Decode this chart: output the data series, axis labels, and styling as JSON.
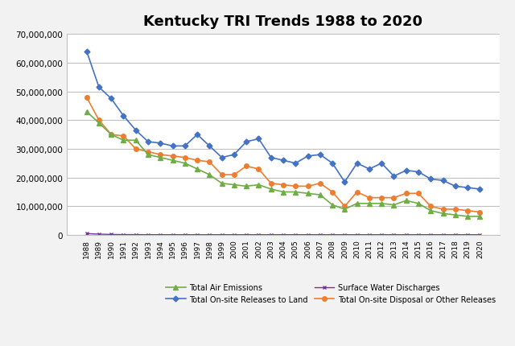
{
  "title": "Kentucky TRI Trends 1988 to 2020",
  "years": [
    1988,
    1989,
    1990,
    1991,
    1992,
    1993,
    1994,
    1995,
    1996,
    1997,
    1998,
    1999,
    2000,
    2001,
    2002,
    2003,
    2004,
    2005,
    2006,
    2007,
    2008,
    2009,
    2010,
    2011,
    2012,
    2013,
    2014,
    2015,
    2016,
    2017,
    2018,
    2019,
    2020
  ],
  "air_emissions": [
    43000000,
    39000000,
    35000000,
    33000000,
    33000000,
    28000000,
    27000000,
    26000000,
    25000000,
    23000000,
    21000000,
    18000000,
    17500000,
    17000000,
    17500000,
    16000000,
    15000000,
    15000000,
    14500000,
    14000000,
    10500000,
    9000000,
    11000000,
    11000000,
    11000000,
    10500000,
    12000000,
    11000000,
    8500000,
    7500000,
    7000000,
    6500000,
    6500000
  ],
  "surface_water": [
    500000,
    300000,
    200000,
    150000,
    150000,
    100000,
    100000,
    100000,
    100000,
    100000,
    100000,
    100000,
    100000,
    100000,
    100000,
    100000,
    100000,
    100000,
    100000,
    100000,
    100000,
    100000,
    100000,
    100000,
    100000,
    100000,
    100000,
    100000,
    100000,
    100000,
    100000,
    100000,
    100000
  ],
  "land_releases": [
    64000000,
    51500000,
    47500000,
    41500000,
    36500000,
    32500000,
    32000000,
    31000000,
    31000000,
    35000000,
    31000000,
    27000000,
    28000000,
    32500000,
    33500000,
    27000000,
    26000000,
    25000000,
    27500000,
    28000000,
    25000000,
    18500000,
    25000000,
    23000000,
    25000000,
    20500000,
    22500000,
    22000000,
    19500000,
    19000000,
    17000000,
    16500000,
    16000000
  ],
  "total_disposal": [
    48000000,
    40000000,
    35000000,
    34500000,
    30000000,
    29000000,
    28000000,
    27500000,
    27000000,
    26000000,
    25500000,
    21000000,
    21000000,
    24000000,
    23000000,
    18000000,
    17500000,
    17000000,
    17000000,
    18000000,
    15000000,
    10000000,
    15000000,
    13000000,
    13000000,
    13000000,
    14500000,
    14500000,
    10000000,
    9000000,
    9000000,
    8500000,
    8000000
  ],
  "air_color": "#70ad47",
  "water_color": "#7030a0",
  "land_color": "#4472c4",
  "disposal_color": "#ed7d31",
  "ylim": [
    0,
    70000000
  ],
  "yticks": [
    0,
    10000000,
    20000000,
    30000000,
    40000000,
    50000000,
    60000000,
    70000000
  ],
  "legend_labels": [
    "Total Air Emissions",
    "Surface Water Discharges",
    "Total On-site Releases to Land",
    "Total On-site Disposal or Other Releases"
  ],
  "background_color": "#f2f2f2",
  "plot_bg": "#ffffff",
  "grid_color": "#c0c0c0"
}
